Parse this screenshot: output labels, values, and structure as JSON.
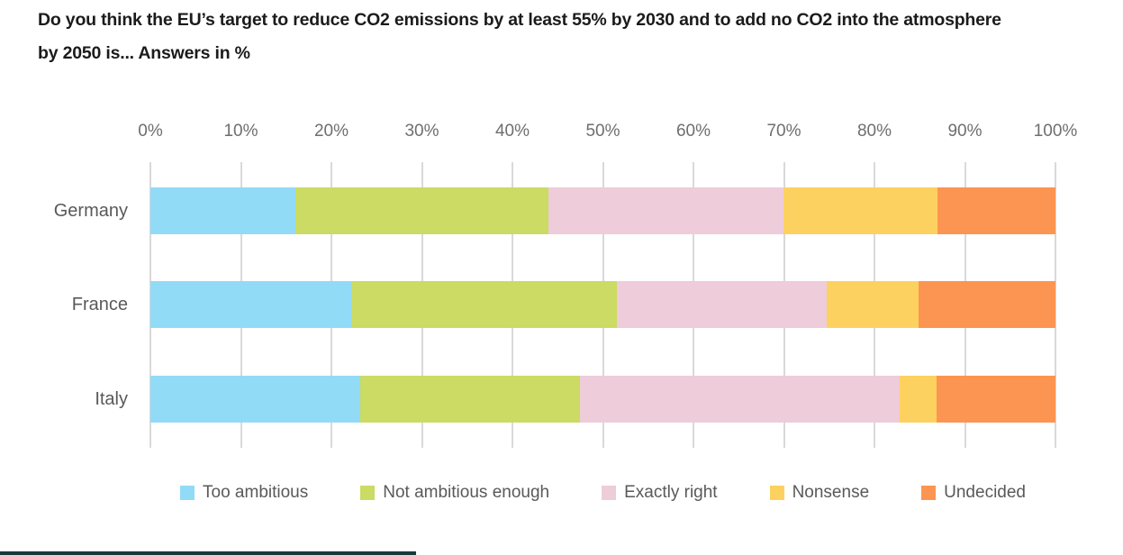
{
  "title": {
    "line1": "Do you think the EU’s target to reduce CO2 emissions by at least 55% by 2030 and to add no CO2 into the atmosphere",
    "line2": "by 2050 is... Answers in %"
  },
  "chart_data": {
    "type": "bar",
    "orientation": "horizontal",
    "stacked": true,
    "title": "Do you think the EU’s target to reduce CO2 emissions by at least 55% by 2030 and to add no CO2 into the atmosphere by 2050 is... Answers in %",
    "categories": [
      "Germany",
      "France",
      "Italy"
    ],
    "series": [
      {
        "name": "Too ambitious",
        "color": "#92dbf7",
        "values": [
          16,
          22,
          23
        ]
      },
      {
        "name": "Not ambitious enough",
        "color": "#cbdb63",
        "values": [
          28,
          29,
          24
        ]
      },
      {
        "name": "Exactly right",
        "color": "#eeccd9",
        "values": [
          26,
          23,
          35
        ]
      },
      {
        "name": "Nonsense",
        "color": "#fdd15f",
        "values": [
          17,
          10,
          4
        ]
      },
      {
        "name": "Undecided",
        "color": "#fc9551",
        "values": [
          13,
          15,
          13
        ]
      }
    ],
    "x_axis": {
      "tick_labels": [
        "0%",
        "10%",
        "20%",
        "30%",
        "40%",
        "50%",
        "60%",
        "70%",
        "80%",
        "90%",
        "100%"
      ],
      "min": 0,
      "max": 100,
      "unit": "%"
    },
    "grid": true,
    "legend_position": "bottom",
    "legend_entries": [
      "Too ambitious",
      "Not ambitious enough",
      "Exactly right",
      "Nonsense",
      "Undecided"
    ],
    "style_colors": {
      "gridline": "#d9d9d9",
      "axis_text": "#6e6e6e",
      "category_text": "#595959",
      "title_text": "#1b1b1b"
    }
  }
}
